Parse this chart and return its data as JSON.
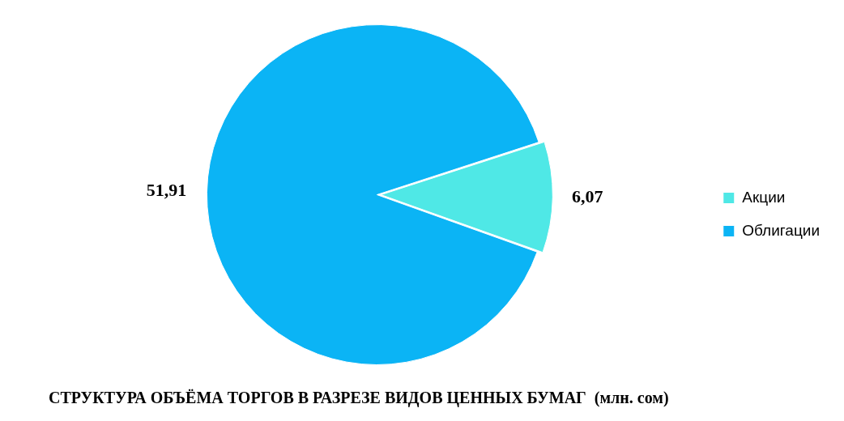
{
  "chart_data": {
    "type": "pie",
    "title": "СТРУКТУРА ОБЪЁМА ТОРГОВ В РАЗРЕЗЕ ВИДОВ ЦЕННЫХ БУМАГ  (млн. сом)",
    "categories": [
      "Акции",
      "Облигации"
    ],
    "values": [
      6.07,
      51.91
    ],
    "value_labels": [
      "6,07",
      "51,91"
    ],
    "colors": [
      "#4fe8e6",
      "#0bb4f5"
    ],
    "legend": "right"
  }
}
